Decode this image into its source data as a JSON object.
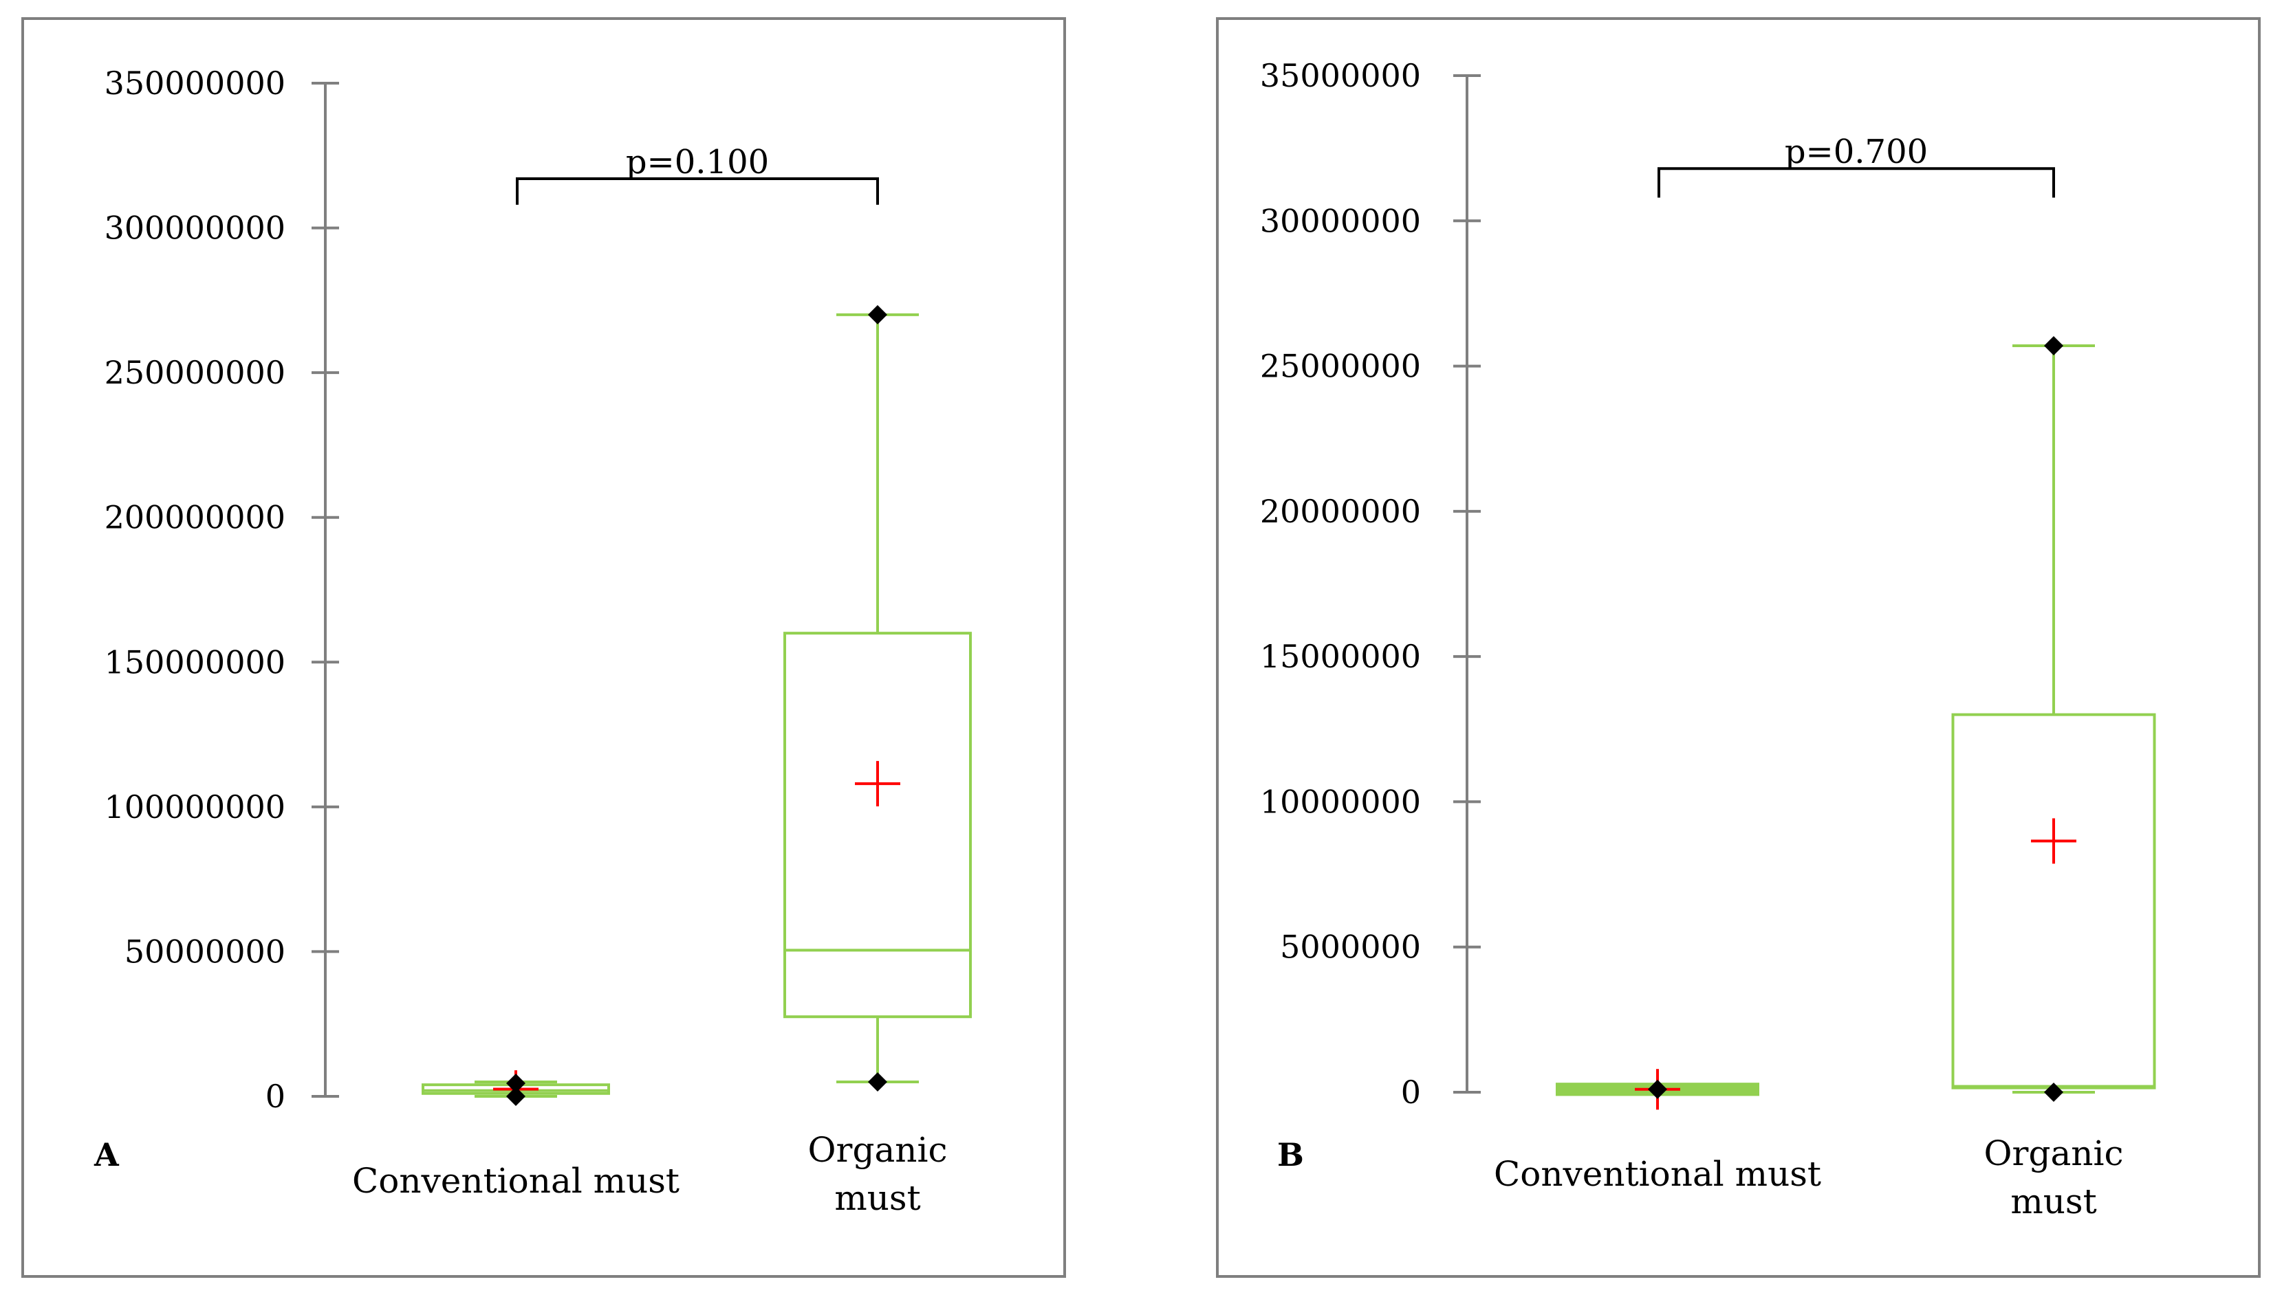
{
  "colors": {
    "box": "#92D050",
    "mean_marker": "#FF0000",
    "point": "#000000",
    "axis": "#7F7F7F",
    "frame": "#7F7F7F",
    "bracket": "#000000"
  },
  "chart_data": [
    {
      "type": "boxplot",
      "panel_label": "A",
      "ylim": [
        0,
        350000000
      ],
      "yticks": [
        "350000000",
        "300000000",
        "250000000",
        "200000000",
        "150000000",
        "100000000",
        "50000000",
        "0"
      ],
      "grid": false,
      "categories": [
        {
          "label_lines": [
            "Conventional must"
          ]
        },
        {
          "label_lines": [
            "Organic",
            "must"
          ]
        }
      ],
      "boxes": [
        {
          "min": 0,
          "q1": 1000000,
          "median": 2000000,
          "q3": 4000000,
          "max": 5000000,
          "mean": 2500000,
          "whisker_low": -2500000,
          "whisker_high": 9000000,
          "points": [
            0,
            4500000
          ]
        },
        {
          "min": 5000000,
          "q1": 27500000,
          "median": 50500000,
          "q3": 160000000,
          "max": 270000000,
          "mean": 108000000,
          "points": [
            5000000,
            270000000
          ]
        }
      ],
      "comparison": {
        "text": "p=0.100",
        "y": 317000000,
        "drop_to": 308000000
      }
    },
    {
      "type": "boxplot",
      "panel_label": "B",
      "ylim": [
        0,
        35000000
      ],
      "yticks": [
        "35000000",
        "30000000",
        "25000000",
        "20000000",
        "15000000",
        "10000000",
        "5000000",
        "0"
      ],
      "grid": false,
      "categories": [
        {
          "label_lines": [
            "Conventional must"
          ]
        },
        {
          "label_lines": [
            "Organic",
            "must"
          ]
        }
      ],
      "boxes": [
        {
          "min": 0,
          "q1": 50000,
          "median": 80000,
          "q3": 150000,
          "max": 200000,
          "mean": 100000,
          "whisker_low": -600000,
          "whisker_high": 800000,
          "points": [
            100000
          ]
        },
        {
          "min": 0,
          "q1": 150000,
          "median": 200000,
          "q3": 13000000,
          "max": 25700000,
          "mean": 8650000,
          "points": [
            0,
            25700000
          ]
        }
      ],
      "comparison": {
        "text": "p=0.700",
        "y": 31800000,
        "drop_to": 30800000
      }
    }
  ]
}
